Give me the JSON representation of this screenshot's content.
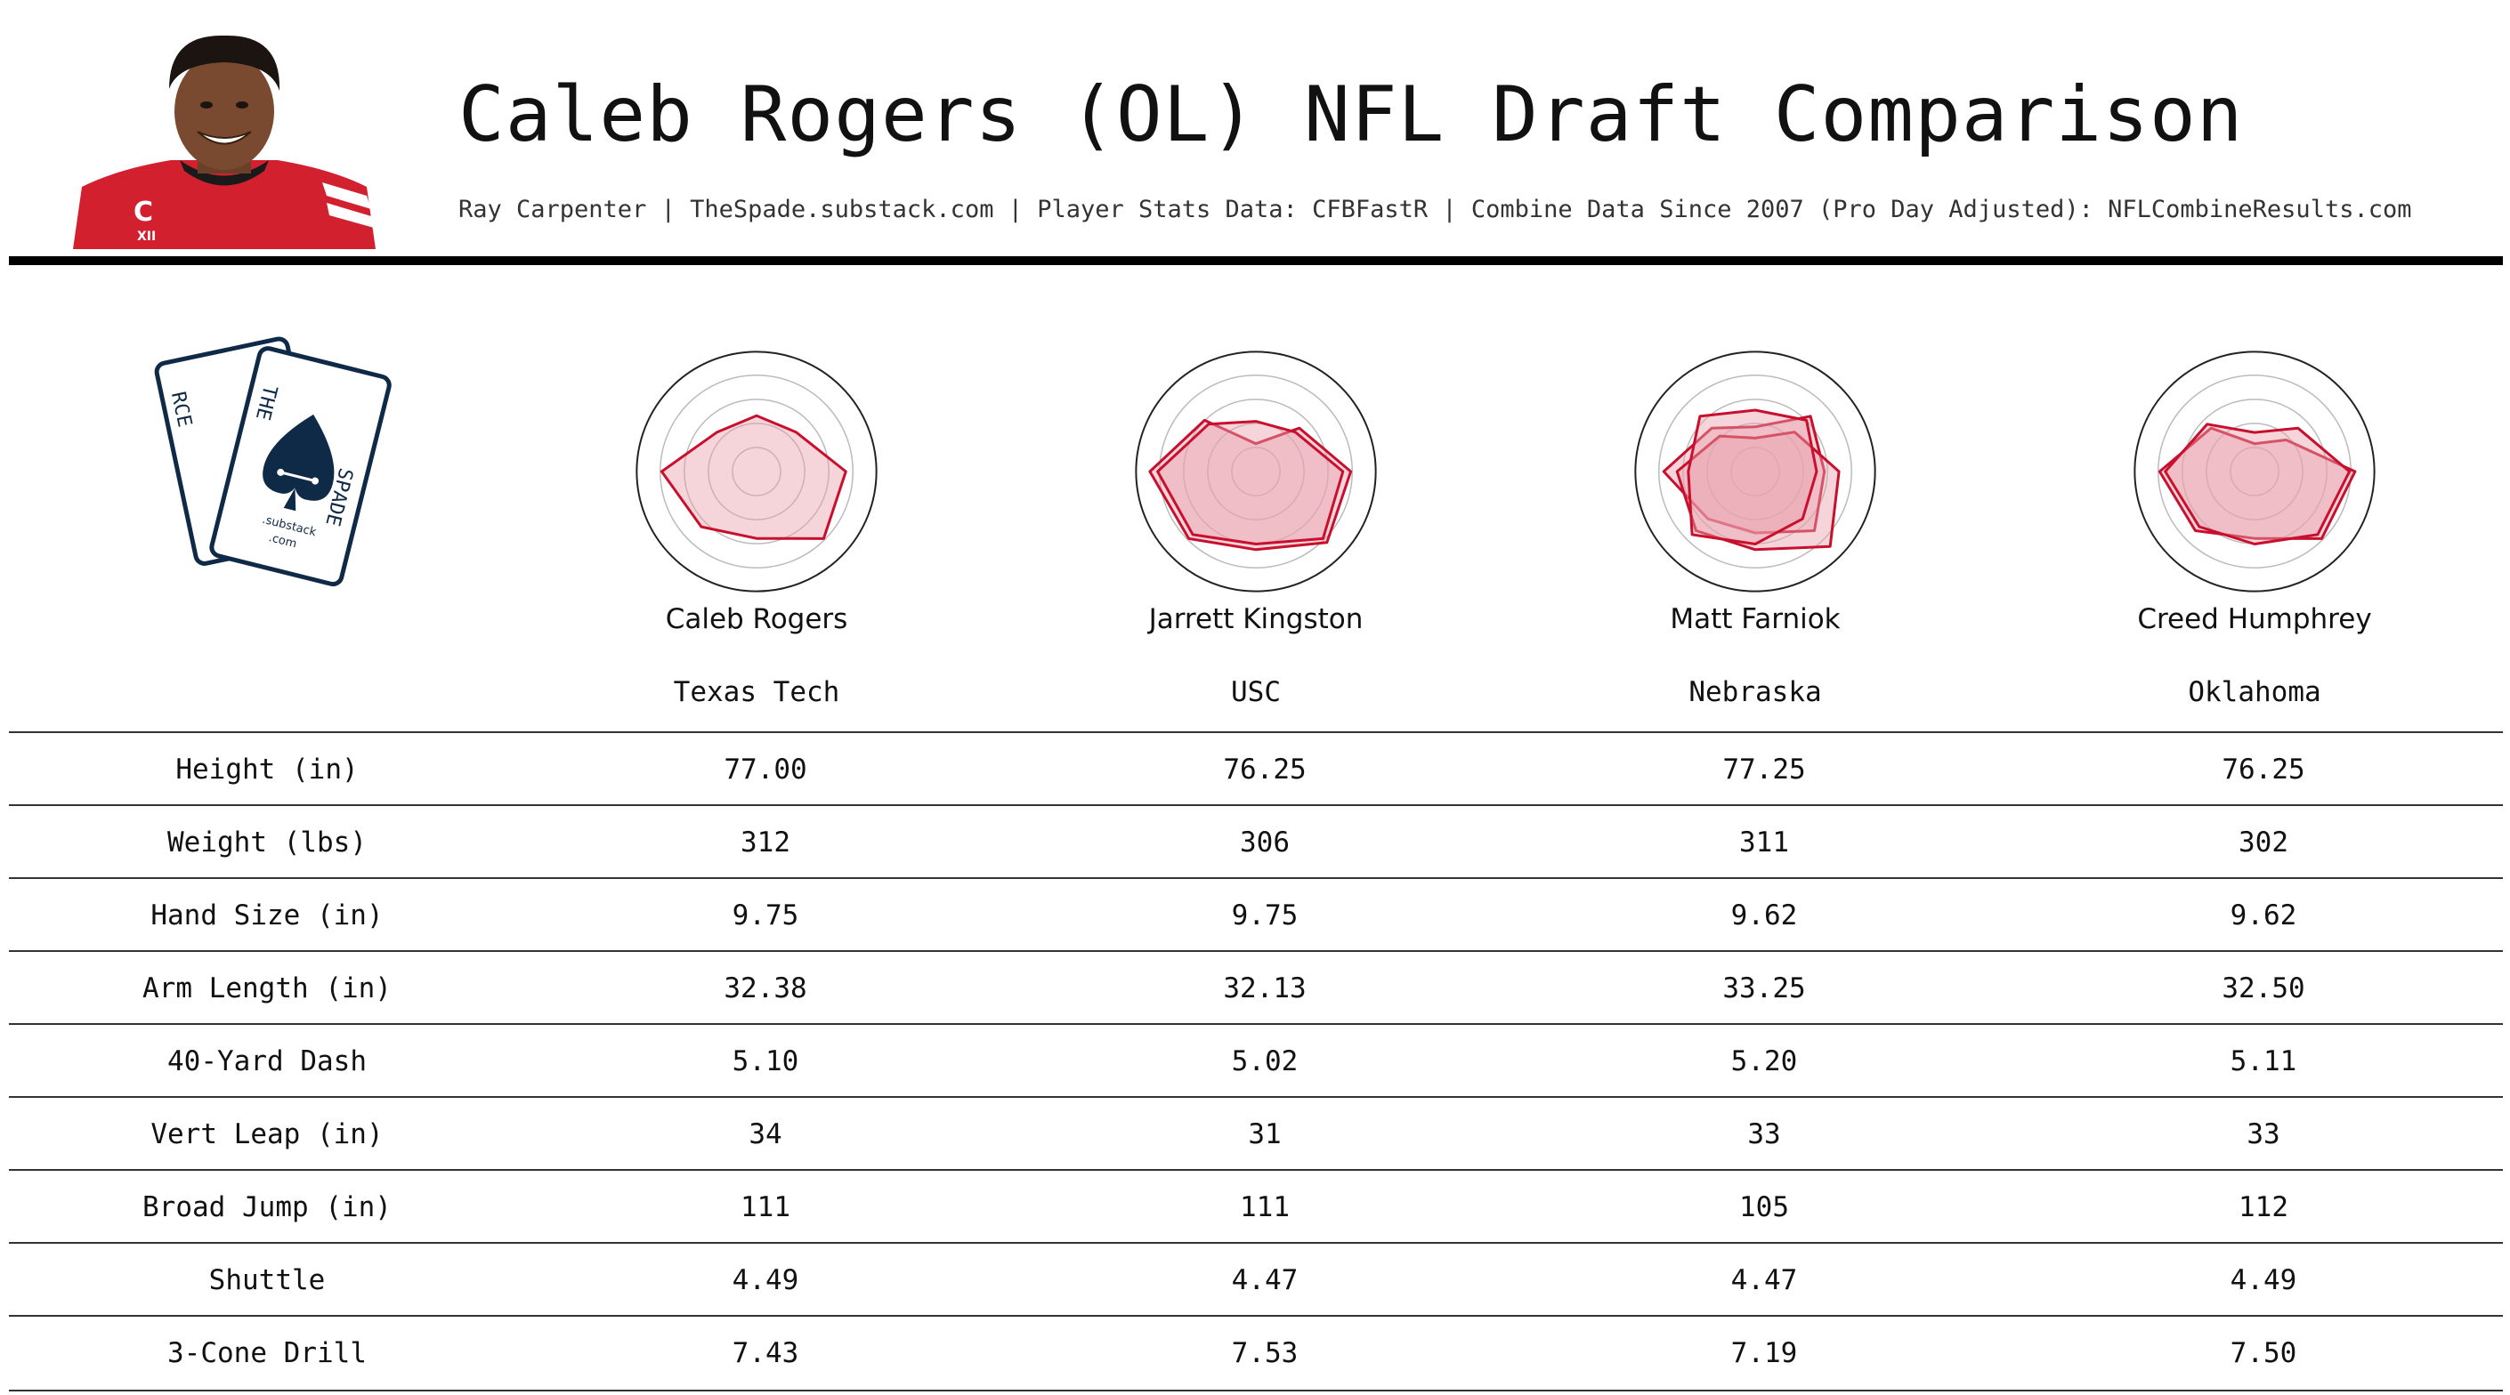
{
  "header": {
    "title": "Caleb Rogers (OL) NFL Draft Comparison",
    "subtitle": "Ray Carpenter | TheSpade.substack.com | Player Stats Data: CFBFastR | Combine Data Since 2007 (Pro Day Adjusted): NFLCombineResults.com"
  },
  "headshot": {
    "jersey_letter": "C",
    "jersey_patch": "XII"
  },
  "logo": {
    "left_card": "RCE",
    "right_card_top": "THE",
    "right_card_side": "SPADE",
    "right_card_small": ".substack",
    "right_card_small2": ".com"
  },
  "players": [
    {
      "name": "Caleb Rogers",
      "school": "Texas Tech"
    },
    {
      "name": "Jarrett Kingston",
      "school": "USC"
    },
    {
      "name": "Matt Farniok",
      "school": "Nebraska"
    },
    {
      "name": "Creed Humphrey",
      "school": "Oklahoma"
    }
  ],
  "colors": {
    "fill": "#e9a1ad",
    "stroke": "#c8102e",
    "grid": "#bbbbbb",
    "frame": "#222222",
    "rule": "#000000"
  },
  "metrics": [
    {
      "label": "Height (in)",
      "values": [
        "77.00",
        "76.25",
        "77.25",
        "76.25"
      ]
    },
    {
      "label": "Weight (lbs)",
      "values": [
        "312",
        "306",
        "311",
        "302"
      ]
    },
    {
      "label": "Hand Size (in)",
      "values": [
        "9.75",
        "9.75",
        "9.62",
        "9.62"
      ]
    },
    {
      "label": "Arm Length (in)",
      "values": [
        "32.38",
        "32.13",
        "33.25",
        "32.50"
      ]
    },
    {
      "label": "40-Yard Dash",
      "values": [
        "5.10",
        "5.02",
        "5.20",
        "5.11"
      ]
    },
    {
      "label": "Vert Leap (in)",
      "values": [
        "34",
        "31",
        "33",
        "33"
      ]
    },
    {
      "label": "Broad Jump (in)",
      "values": [
        "111",
        "111",
        "105",
        "112"
      ]
    },
    {
      "label": "Shuttle",
      "values": [
        "4.49",
        "4.47",
        "4.47",
        "4.49"
      ]
    },
    {
      "label": "3-Cone Drill",
      "values": [
        "7.43",
        "7.53",
        "7.19",
        "7.50"
      ]
    }
  ],
  "chart_data": [
    {
      "type": "radar",
      "player": "Caleb Rogers",
      "axis_count": 8,
      "rmax": 1.0,
      "grid_rings": 4,
      "series": [
        {
          "values": [
            0.5,
            0.5,
            0.8,
            0.85,
            0.6,
            0.7,
            0.85,
            0.5
          ]
        }
      ]
    },
    {
      "type": "radar",
      "player": "Jarrett Kingston",
      "axis_count": 8,
      "rmax": 1.0,
      "grid_rings": 4,
      "series": [
        {
          "values": [
            0.25,
            0.55,
            0.85,
            0.9,
            0.7,
            0.85,
            0.95,
            0.65
          ]
        },
        {
          "values": [
            0.45,
            0.5,
            0.78,
            0.85,
            0.65,
            0.8,
            0.88,
            0.6
          ]
        }
      ]
    },
    {
      "type": "radar",
      "player": "Matt Farniok",
      "axis_count": 8,
      "rmax": 1.0,
      "grid_rings": 4,
      "series": [
        {
          "values": [
            0.4,
            0.7,
            0.62,
            0.75,
            0.55,
            0.6,
            0.82,
            0.55
          ]
        },
        {
          "values": [
            0.3,
            0.5,
            0.75,
            0.95,
            0.7,
            0.75,
            0.7,
            0.45
          ]
        },
        {
          "values": [
            0.55,
            0.65,
            0.55,
            0.6,
            0.65,
            0.8,
            0.6,
            0.7
          ]
        }
      ]
    },
    {
      "type": "radar",
      "player": "Creed Humphrey",
      "axis_count": 8,
      "rmax": 1.0,
      "grid_rings": 4,
      "series": [
        {
          "values": [
            0.25,
            0.4,
            0.9,
            0.85,
            0.6,
            0.75,
            0.85,
            0.55
          ]
        },
        {
          "values": [
            0.35,
            0.55,
            0.85,
            0.8,
            0.65,
            0.7,
            0.8,
            0.6
          ]
        }
      ]
    }
  ]
}
